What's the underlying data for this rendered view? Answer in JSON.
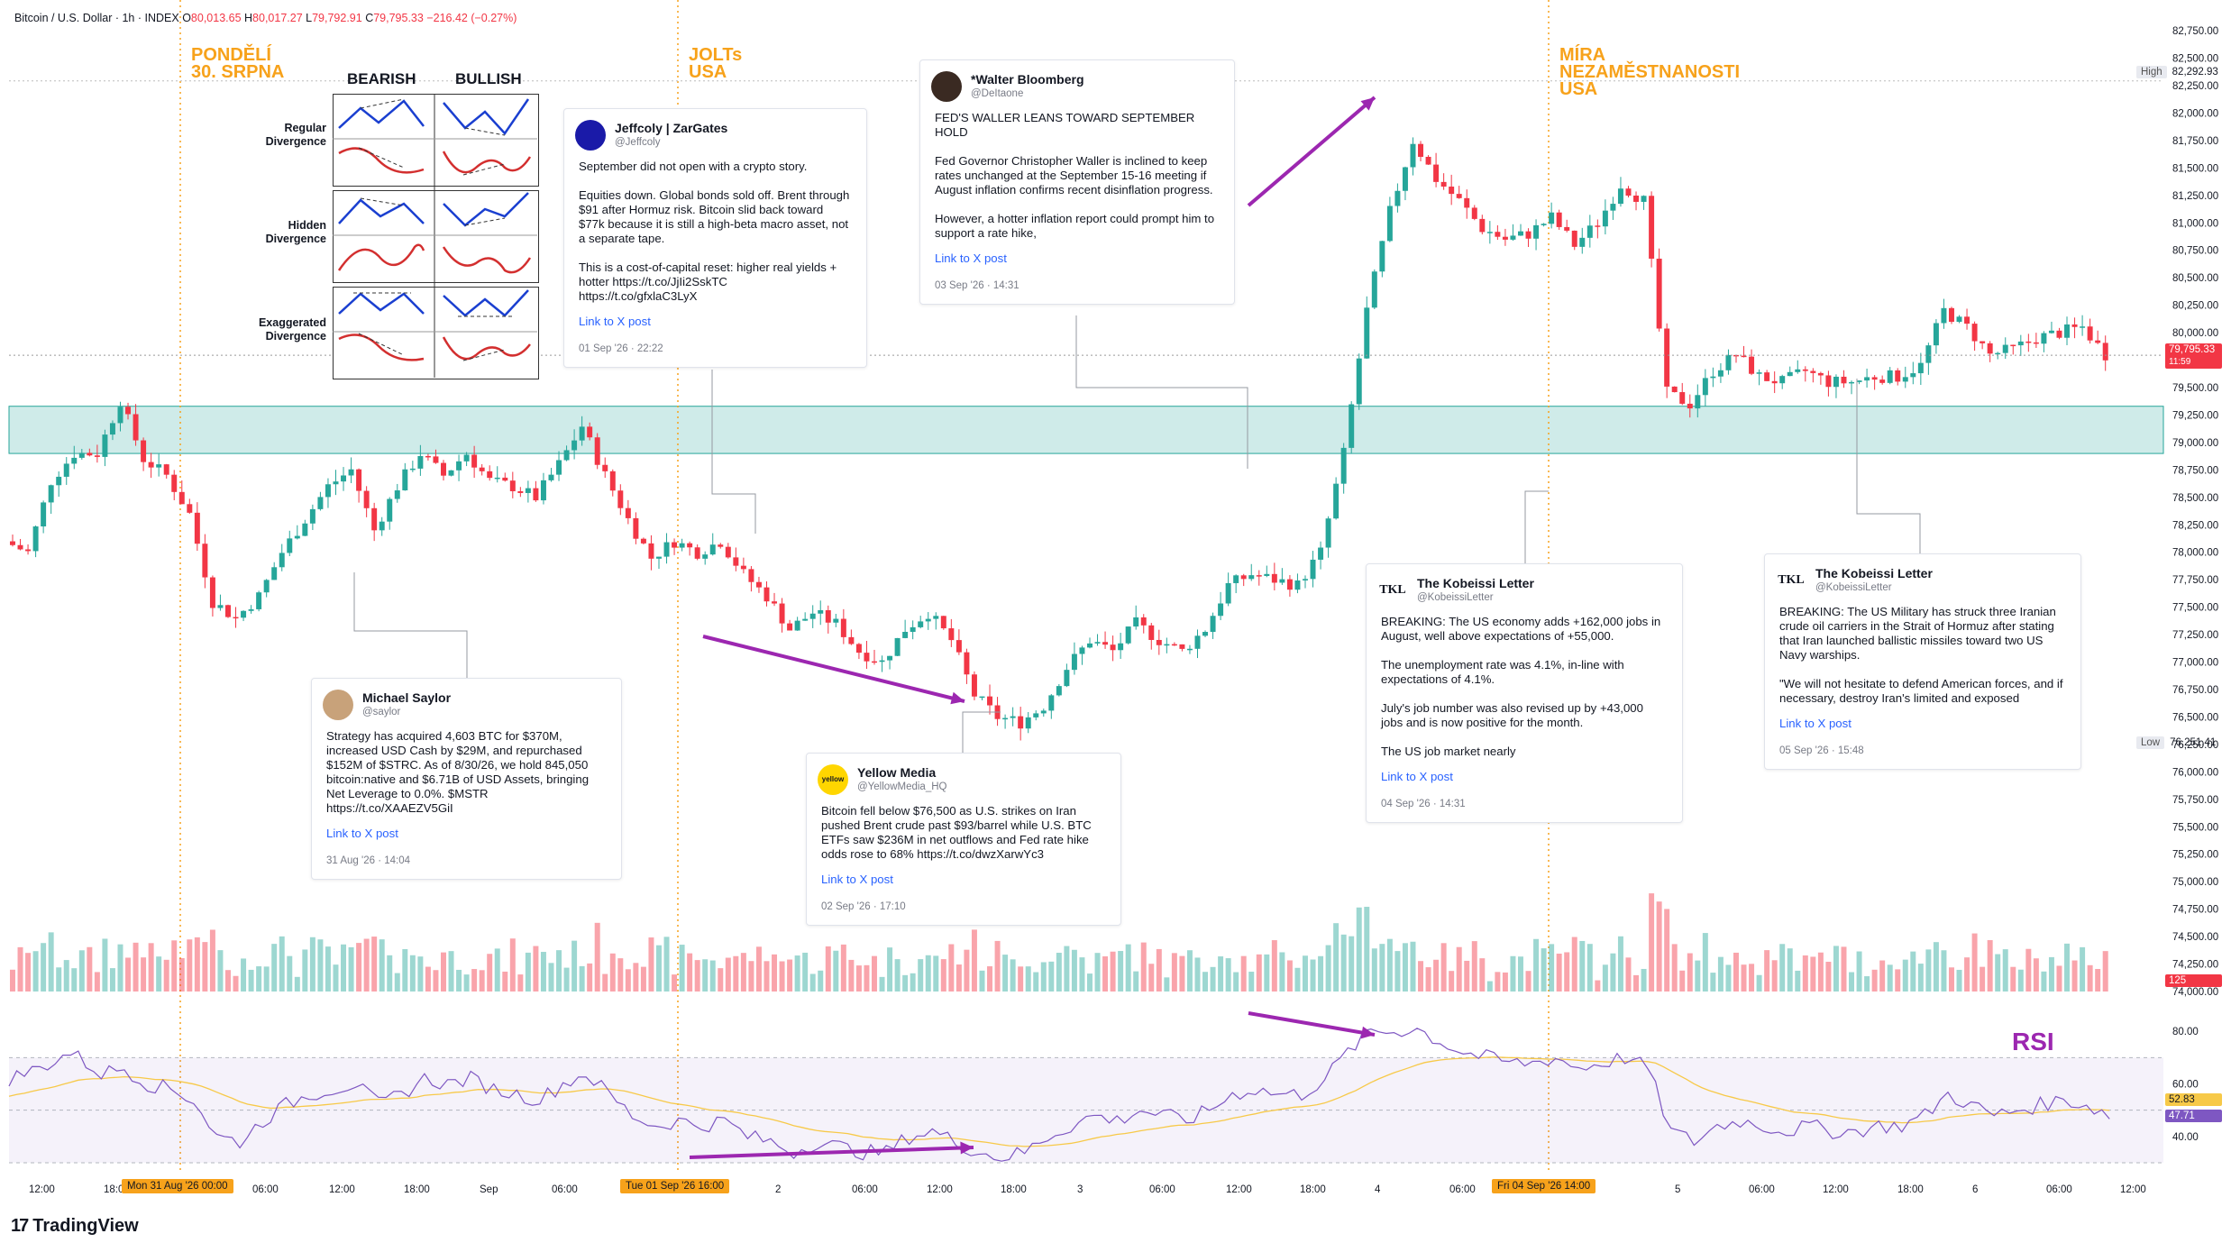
{
  "header": {
    "symbol": "Bitcoin / U.S. Dollar · 1h · INDEX",
    "o_label": "O",
    "o": "80,013.65",
    "h_label": "H",
    "h": "80,017.27",
    "l_label": "L",
    "l": "79,792.91",
    "c_label": "C",
    "c": "79,795.33",
    "change": "−216.42 (−0.27%)"
  },
  "events": [
    {
      "label": "PONDĚLÍ\n30. SRPNA"
    },
    {
      "label": "JOLTs\nUSA"
    },
    {
      "label": "MÍRA\nNEZAMĚSTNANOSTI\nUSA"
    }
  ],
  "divergence_panel": {
    "col_bearish": "BEARISH",
    "col_bullish": "BULLISH",
    "row_regular": "Regular\nDivergence",
    "row_hidden": "Hidden\nDivergence",
    "row_exaggerated": "Exaggerated\nDivergence"
  },
  "cards": [
    {
      "name": "Jeffcoly | ZarGates",
      "handle": "@Jeffcoly",
      "avatar": "",
      "body": "September did not open with a crypto story.\n\nEquities down. Global bonds sold off. Brent through $91 after Hormuz risk. Bitcoin slid back toward $77k because it is still a high-beta macro asset, not a separate tape.\n\nThis is a cost-of-capital reset: higher real yields + hotter https://t.co/JjIi2SskTC\nhttps://t.co/gfxlaC3LyX",
      "link": "Link to X post",
      "date": "01 Sep '26 · 22:22"
    },
    {
      "name": "*Walter Bloomberg",
      "handle": "@DeItaone",
      "avatar": "",
      "body": "FED'S WALLER LEANS TOWARD SEPTEMBER HOLD\n\nFed Governor Christopher Waller is inclined to keep rates unchanged at the September 15-16 meeting if August inflation confirms recent disinflation progress.\n\nHowever, a hotter inflation report could prompt him to support a rate hike,",
      "link": "Link to X post",
      "date": "03 Sep '26 · 14:31"
    },
    {
      "name": "Michael Saylor",
      "handle": "@saylor",
      "avatar": "",
      "body": "Strategy has acquired 4,603 BTC for $370M, increased USD Cash by $29M, and repurchased $152M of $STRC. As of 8/30/26, we hold 845,050 bitcoin:native and $6.71B of USD Assets, bringing Net Leverage to 0.0%. $MSTR\nhttps://t.co/XAAEZV5GiI",
      "link": "Link to X post",
      "date": "31 Aug '26 · 14:04"
    },
    {
      "name": "Yellow Media",
      "handle": "@YellowMedia_HQ",
      "avatar": "yellow",
      "body": "Bitcoin fell below $76,500 as U.S. strikes on Iran pushed Brent crude past $93/barrel while U.S. BTC ETFs saw $236M in net outflows and Fed rate hike odds rose to 68% https://t.co/dwzXarwYc3",
      "link": "Link to X post",
      "date": "02 Sep '26 · 17:10"
    },
    {
      "name": "The Kobeissi Letter",
      "handle": "@KobeissiLetter",
      "avatar": "TKL",
      "body": "BREAKING: The US economy adds +162,000 jobs in August, well above expectations of +55,000.\n\nThe unemployment rate was 4.1%, in-line with expectations of 4.1%.\n\nJuly's job number was also revised up by +43,000 jobs and is now positive for the month.\n\nThe US job market nearly",
      "link": "Link to X post",
      "date": "04 Sep '26 · 14:31"
    },
    {
      "name": "The Kobeissi Letter",
      "handle": "@KobeissiLetter",
      "avatar": "TKL",
      "body": "BREAKING: The US Military has struck three Iranian crude oil carriers in the Strait of Hormuz after stating that Iran launched ballistic missiles toward two US Navy warships.\n\n\"We will not hesitate to defend American forces, and if necessary, destroy Iran's limited and exposed",
      "link": "Link to X post",
      "date": "05 Sep '26 · 15:48"
    }
  ],
  "rsi_title": "RSI",
  "brand": "TradingView",
  "price_labels": {
    "high_label": "High",
    "high": "82,292.93",
    "low_label": "Low",
    "low": "76,251.41",
    "last": "79,795.33",
    "last_time": "11:59",
    "vol_tag": "125",
    "rsi_value": "52.83",
    "rsi_ma": "47.71"
  },
  "time_tags": [
    "Mon 31 Aug '26   00:00",
    "Tue 01 Sep '26   16:00",
    "Fri 04 Sep '26   14:00"
  ],
  "colors": {
    "up": "#26a69a",
    "down": "#f23645",
    "event_line": "#f7a21b",
    "zone": "#26a69a",
    "arrow": "#9c27b0",
    "rsi": "#7e57c2",
    "rsi_ma": "#f7c948"
  },
  "chart_data": {
    "type": "candlestick",
    "timeframe": "1h",
    "price_axis": [
      "82,750.00",
      "82,500.00",
      "82,250.00",
      "82,000.00",
      "81,750.00",
      "81,500.00",
      "81,250.00",
      "81,000.00",
      "80,750.00",
      "80,500.00",
      "80,250.00",
      "80,000.00",
      "79,750.00",
      "79,500.00",
      "79,250.00",
      "79,000.00",
      "78,750.00",
      "78,500.00",
      "78,250.00",
      "78,000.00",
      "77,750.00",
      "77,500.00",
      "77,250.00",
      "77,000.00",
      "76,750.00",
      "76,500.00",
      "76,250.00",
      "76,000.00",
      "75,750.00",
      "75,500.00",
      "75,250.00",
      "75,000.00",
      "74,750.00",
      "74,500.00",
      "74,250.00",
      "74,000.00"
    ],
    "rsi_axis": [
      "80.00",
      "60.00",
      "40.00"
    ],
    "time_axis": [
      "12:00",
      "18:00",
      "06:00",
      "12:00",
      "18:00",
      "Sep",
      "06:00",
      "2",
      "06:00",
      "12:00",
      "18:00",
      "3",
      "06:00",
      "12:00",
      "18:00",
      "4",
      "06:00",
      "5",
      "06:00",
      "12:00",
      "18:00",
      "6",
      "06:00",
      "12:00"
    ],
    "ylim": [
      74000,
      82800
    ],
    "support_zone": [
      78900,
      79330
    ],
    "close_path": [
      [
        0,
        78100
      ],
      [
        6,
        78000
      ],
      [
        12,
        78650
      ],
      [
        18,
        78900
      ],
      [
        24,
        78900
      ],
      [
        30,
        79380
      ],
      [
        36,
        78850
      ],
      [
        42,
        78700
      ],
      [
        48,
        78350
      ],
      [
        54,
        77550
      ],
      [
        60,
        77400
      ],
      [
        66,
        77600
      ],
      [
        72,
        78000
      ],
      [
        78,
        78300
      ],
      [
        84,
        78600
      ],
      [
        90,
        78750
      ],
      [
        96,
        78200
      ],
      [
        102,
        78600
      ],
      [
        108,
        78900
      ],
      [
        114,
        78700
      ],
      [
        120,
        78900
      ],
      [
        126,
        78650
      ],
      [
        132,
        78600
      ],
      [
        138,
        78500
      ],
      [
        144,
        78800
      ],
      [
        150,
        79150
      ],
      [
        156,
        78700
      ],
      [
        162,
        78300
      ],
      [
        168,
        77950
      ],
      [
        174,
        78100
      ],
      [
        180,
        78000
      ],
      [
        186,
        78100
      ],
      [
        192,
        77800
      ],
      [
        198,
        77600
      ],
      [
        204,
        77300
      ],
      [
        210,
        77450
      ],
      [
        216,
        77350
      ],
      [
        222,
        77100
      ],
      [
        228,
        77000
      ],
      [
        234,
        77300
      ],
      [
        240,
        77450
      ],
      [
        246,
        77200
      ],
      [
        252,
        76700
      ],
      [
        258,
        76500
      ],
      [
        264,
        76450
      ],
      [
        270,
        76600
      ],
      [
        276,
        76950
      ],
      [
        282,
        77200
      ],
      [
        288,
        77100
      ],
      [
        294,
        77350
      ],
      [
        300,
        77200
      ],
      [
        306,
        77100
      ],
      [
        312,
        77300
      ],
      [
        318,
        77700
      ],
      [
        324,
        77800
      ],
      [
        330,
        77750
      ],
      [
        336,
        77700
      ],
      [
        342,
        78000
      ],
      [
        348,
        78900
      ],
      [
        354,
        80200
      ],
      [
        360,
        81100
      ],
      [
        366,
        81750
      ],
      [
        372,
        81400
      ],
      [
        378,
        81200
      ],
      [
        384,
        80950
      ],
      [
        390,
        80850
      ],
      [
        396,
        80900
      ],
      [
        402,
        81050
      ],
      [
        408,
        80800
      ],
      [
        414,
        81000
      ],
      [
        420,
        81350
      ],
      [
        426,
        81200
      ],
      [
        432,
        79450
      ],
      [
        438,
        79350
      ],
      [
        444,
        79650
      ],
      [
        450,
        79800
      ],
      [
        456,
        79600
      ],
      [
        462,
        79550
      ],
      [
        468,
        79650
      ],
      [
        474,
        79550
      ],
      [
        480,
        79550
      ],
      [
        486,
        79600
      ],
      [
        492,
        79600
      ],
      [
        498,
        79700
      ],
      [
        504,
        80200
      ],
      [
        510,
        80050
      ],
      [
        516,
        79800
      ],
      [
        522,
        79850
      ],
      [
        528,
        79950
      ],
      [
        534,
        80000
      ],
      [
        540,
        80050
      ],
      [
        546,
        79800
      ]
    ],
    "total_bars": 560,
    "volume_note": "histogram colored by candle direction",
    "rsi_path": [
      [
        0,
        62
      ],
      [
        8,
        66
      ],
      [
        16,
        72
      ],
      [
        24,
        64
      ],
      [
        30,
        66
      ],
      [
        36,
        60
      ],
      [
        42,
        58
      ],
      [
        48,
        54
      ],
      [
        54,
        40
      ],
      [
        60,
        38
      ],
      [
        66,
        46
      ],
      [
        72,
        52
      ],
      [
        78,
        56
      ],
      [
        84,
        58
      ],
      [
        90,
        60
      ],
      [
        96,
        52
      ],
      [
        102,
        56
      ],
      [
        108,
        62
      ],
      [
        114,
        60
      ],
      [
        120,
        62
      ],
      [
        126,
        58
      ],
      [
        132,
        56
      ],
      [
        138,
        54
      ],
      [
        144,
        60
      ],
      [
        150,
        64
      ],
      [
        156,
        56
      ],
      [
        162,
        48
      ],
      [
        168,
        44
      ],
      [
        174,
        46
      ],
      [
        180,
        44
      ],
      [
        186,
        46
      ],
      [
        192,
        40
      ],
      [
        198,
        38
      ],
      [
        204,
        34
      ],
      [
        210,
        38
      ],
      [
        216,
        36
      ],
      [
        222,
        34
      ],
      [
        228,
        34
      ],
      [
        234,
        40
      ],
      [
        240,
        42
      ],
      [
        246,
        38
      ],
      [
        252,
        34
      ],
      [
        258,
        32
      ],
      [
        264,
        34
      ],
      [
        270,
        40
      ],
      [
        276,
        44
      ],
      [
        282,
        48
      ],
      [
        288,
        46
      ],
      [
        294,
        50
      ],
      [
        300,
        48
      ],
      [
        306,
        46
      ],
      [
        312,
        50
      ],
      [
        318,
        56
      ],
      [
        324,
        58
      ],
      [
        330,
        56
      ],
      [
        336,
        56
      ],
      [
        342,
        62
      ],
      [
        348,
        72
      ],
      [
        354,
        80
      ],
      [
        360,
        80
      ],
      [
        366,
        81
      ],
      [
        372,
        76
      ],
      [
        378,
        72
      ],
      [
        384,
        70
      ],
      [
        390,
        68
      ],
      [
        396,
        68
      ],
      [
        402,
        70
      ],
      [
        408,
        66
      ],
      [
        414,
        68
      ],
      [
        420,
        70
      ],
      [
        426,
        66
      ],
      [
        432,
        42
      ],
      [
        438,
        38
      ],
      [
        444,
        44
      ],
      [
        450,
        46
      ],
      [
        456,
        44
      ],
      [
        462,
        42
      ],
      [
        468,
        44
      ],
      [
        474,
        42
      ],
      [
        480,
        42
      ],
      [
        486,
        44
      ],
      [
        492,
        44
      ],
      [
        498,
        48
      ],
      [
        504,
        56
      ],
      [
        510,
        52
      ],
      [
        516,
        48
      ],
      [
        522,
        50
      ],
      [
        528,
        52
      ],
      [
        534,
        54
      ],
      [
        540,
        52
      ],
      [
        546,
        48
      ]
    ]
  }
}
